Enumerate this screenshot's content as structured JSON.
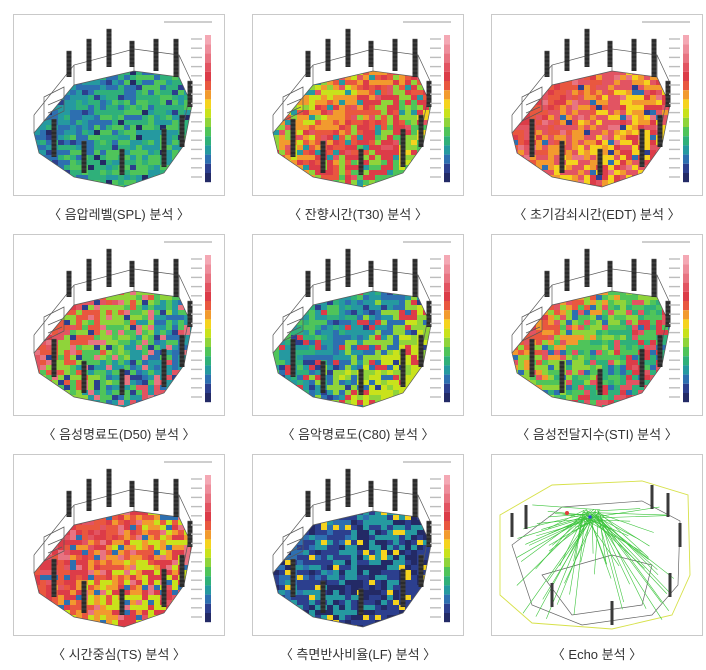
{
  "panels": [
    {
      "caption": "〈 음압레벨(SPL) 분석 〉",
      "scheme": "spl"
    },
    {
      "caption": "〈 잔향시간(T30) 분석 〉",
      "scheme": "t30"
    },
    {
      "caption": "〈 초기감쇠시간(EDT) 분석 〉",
      "scheme": "edt"
    },
    {
      "caption": "〈 음성명료도(D50) 분석 〉",
      "scheme": "d50"
    },
    {
      "caption": "〈 음악명료도(C80) 분석 〉",
      "scheme": "c80"
    },
    {
      "caption": "〈 음성전달지수(STI) 분석 〉",
      "scheme": "sti"
    },
    {
      "caption": "〈 시간중심(TS) 분석 〉",
      "scheme": "ts"
    },
    {
      "caption": "〈 측면반사비율(LF) 분석 〉",
      "scheme": "lf"
    },
    {
      "caption": "〈 Echo 분석 〉",
      "scheme": "echo"
    }
  ],
  "colors": {
    "legend": [
      "#f4a8b4",
      "#ee8e9c",
      "#e87482",
      "#e25462",
      "#dc3c48",
      "#e9573f",
      "#f29a2e",
      "#f5d31e",
      "#c9e21b",
      "#8fd43a",
      "#4fc45a",
      "#2fb07a",
      "#2599a0",
      "#2d6fb0",
      "#2c3f8e",
      "#232a66"
    ],
    "echo_lines": "#3cc43c",
    "echo_frame": "#d7e14a"
  }
}
